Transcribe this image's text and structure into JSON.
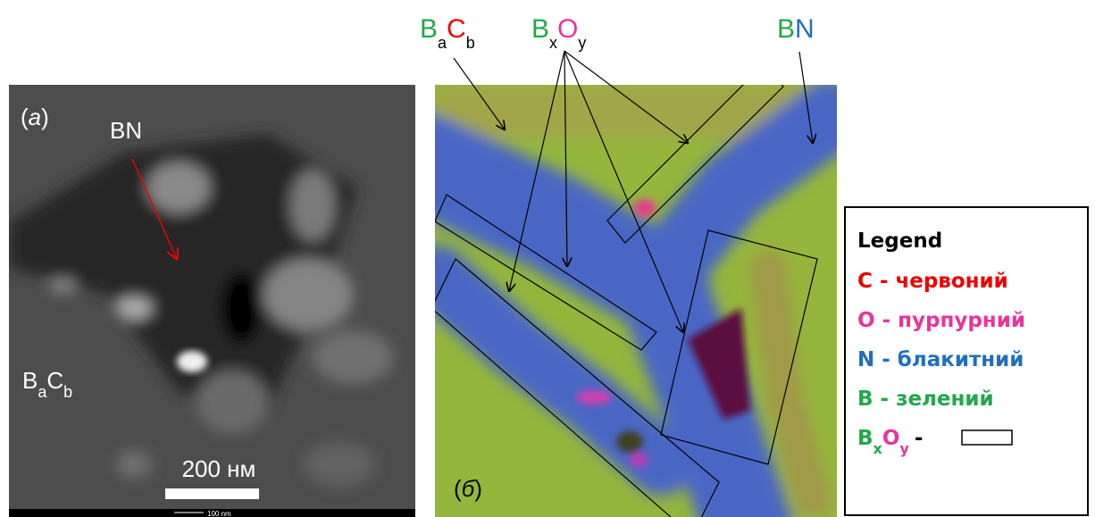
{
  "panel_a": {
    "label": [
      "(",
      "а",
      ")"
    ],
    "bn_label": "BN",
    "phase": {
      "main1": "B",
      "sub1": "a",
      "main2": "C",
      "sub2": "b"
    },
    "scale_bar": "200 нм",
    "footer_scale": "100 nm"
  },
  "panel_b": {
    "label": [
      "(",
      "б",
      ")"
    ]
  },
  "annotations": {
    "bacb": {
      "main1": "B",
      "sub1": "a",
      "main2": "C",
      "sub2": "b"
    },
    "bxoy": {
      "main1": "B",
      "sub1": "x",
      "main2": "O",
      "sub2": "y"
    },
    "bn": {
      "main1": "B",
      "main2": "N"
    }
  },
  "legend": {
    "title": "Legend",
    "items": [
      "C - червоний",
      "O - пурпурний",
      "N - блакитний",
      "B - зелений"
    ],
    "rect_item": {
      "main1": "B",
      "sub1": "x",
      "main2": "O",
      "sub2": "y",
      "suffix": "-"
    }
  }
}
